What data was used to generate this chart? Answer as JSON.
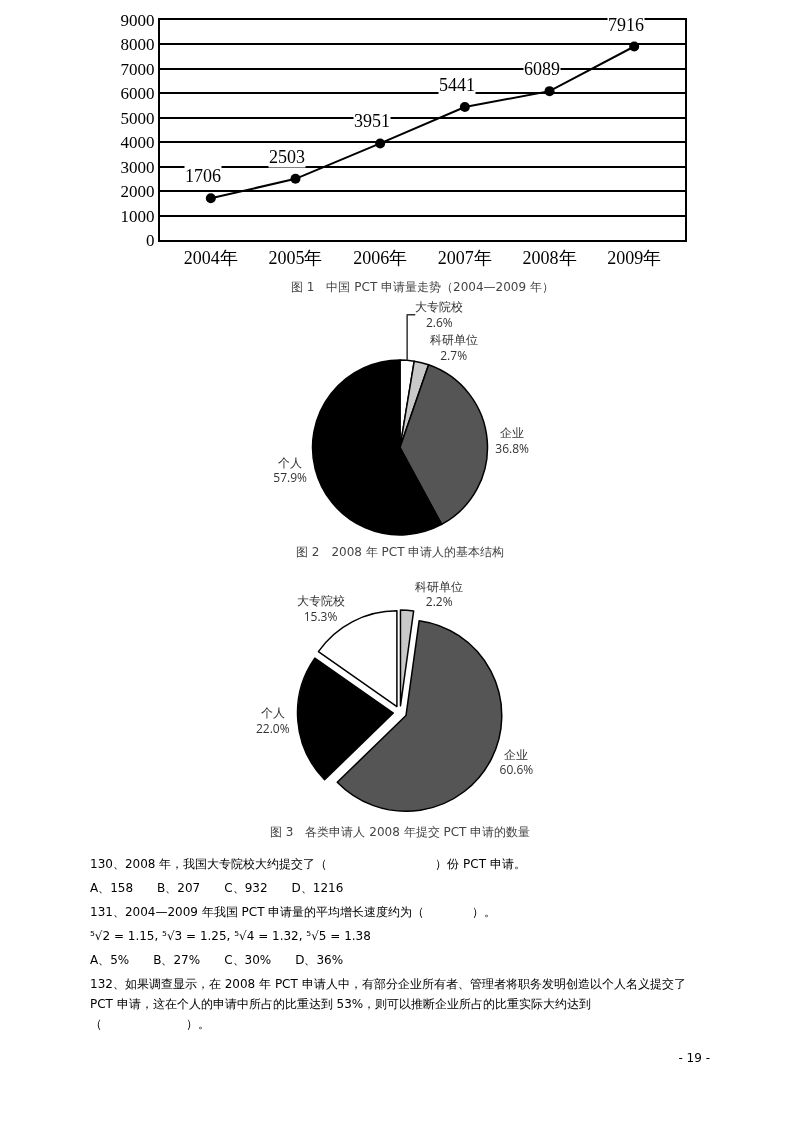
{
  "chart_data": [
    {
      "type": "line",
      "title": "图 1　中国 PCT 申请量走势（2004—2009 年）",
      "categories": [
        "2004年",
        "2005年",
        "2006年",
        "2007年",
        "2008年",
        "2009年"
      ],
      "series": [
        {
          "color": "#000000",
          "values": [
            1706,
            2503,
            3951,
            5441,
            6089,
            7916
          ]
        }
      ],
      "ylim": [
        0,
        9000
      ],
      "yticks": [
        0,
        1000,
        2000,
        3000,
        4000,
        5000,
        6000,
        7000,
        8000,
        9000
      ],
      "grid": "y",
      "marker": "circle",
      "line_style": "solid",
      "data_labels": true
    },
    {
      "type": "pie",
      "title": "图 2　2008 年 PCT 申请人的基本结构",
      "categories": [
        "大专院校",
        "科研单位",
        "企业",
        "个人"
      ],
      "values": [
        2.6,
        2.7,
        36.8,
        57.9
      ],
      "value_labels": [
        "2.6%",
        "2.7%",
        "36.8%",
        "57.9%"
      ],
      "colors": [
        "#ffffff",
        "#c8c8c8",
        "#555555",
        "#000000"
      ]
    },
    {
      "type": "pie",
      "title": "图 3　各类申请人 2008 年提交 PCT 申请的数量",
      "categories": [
        "科研单位",
        "企业",
        "个人",
        "大专院校"
      ],
      "values": [
        2.2,
        60.6,
        22.0,
        15.3
      ],
      "value_labels": [
        "2.2%",
        "60.6%",
        "22.0%",
        "15.3%"
      ],
      "colors": [
        "#c8c8c8",
        "#555555",
        "#000000",
        "#ffffff"
      ]
    },
    {
      "type": "other",
      "annotations": [
        "130、2008 年，我国大专院校大约提交了（　　　　　　　　　）份 PCT 申请。",
        "A、158　　B、207　　C、932　　D、1216",
        "131、2004—2009 年我国 PCT 申请量的平均增长速度约为（　　　　）。",
        "⁵√2 = 1.15, ⁵√3 = 1.25, ⁵√4 = 1.32, ⁵√5 = 1.38",
        "A、5%　　B、27%　　C、30%　　D、36%",
        "132、如果调查显示，在 2008 年 PCT 申请人中，有部分企业所有者、管理者将职务发明创造以个人名义提交了 PCT 申请，这在个人的申请中所占的比重达到 53%，则可以推断企业所占的比重实际大约达到（　　　　　　　）。",
        "- 19 -"
      ]
    }
  ]
}
